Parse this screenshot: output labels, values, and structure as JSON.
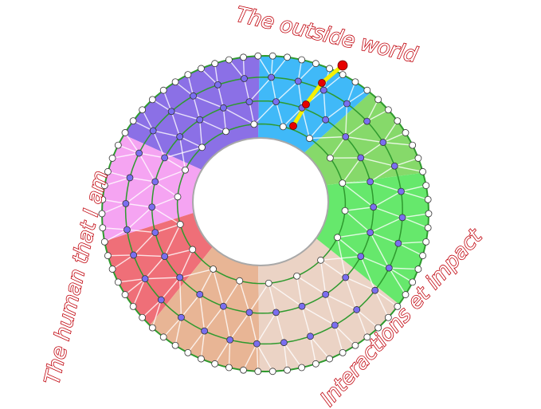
{
  "labels": {
    "top": "The outside world",
    "left": "The human that I am",
    "right": "Interactions et impact"
  },
  "colors": {
    "sectors": [
      "#86d96a",
      "#40b9f8",
      "#8b70e6",
      "#f5a4f2",
      "#ef6f78",
      "#e8b595",
      "#ebd3c5",
      "#66e86c"
    ],
    "ring_line": "#2e9a2e",
    "node_inner": "#7a6ef0",
    "node_edge": "#ffffff",
    "path": "#f5f000",
    "path_node": "#e60000",
    "hole_border": "#a8a8a8"
  }
}
